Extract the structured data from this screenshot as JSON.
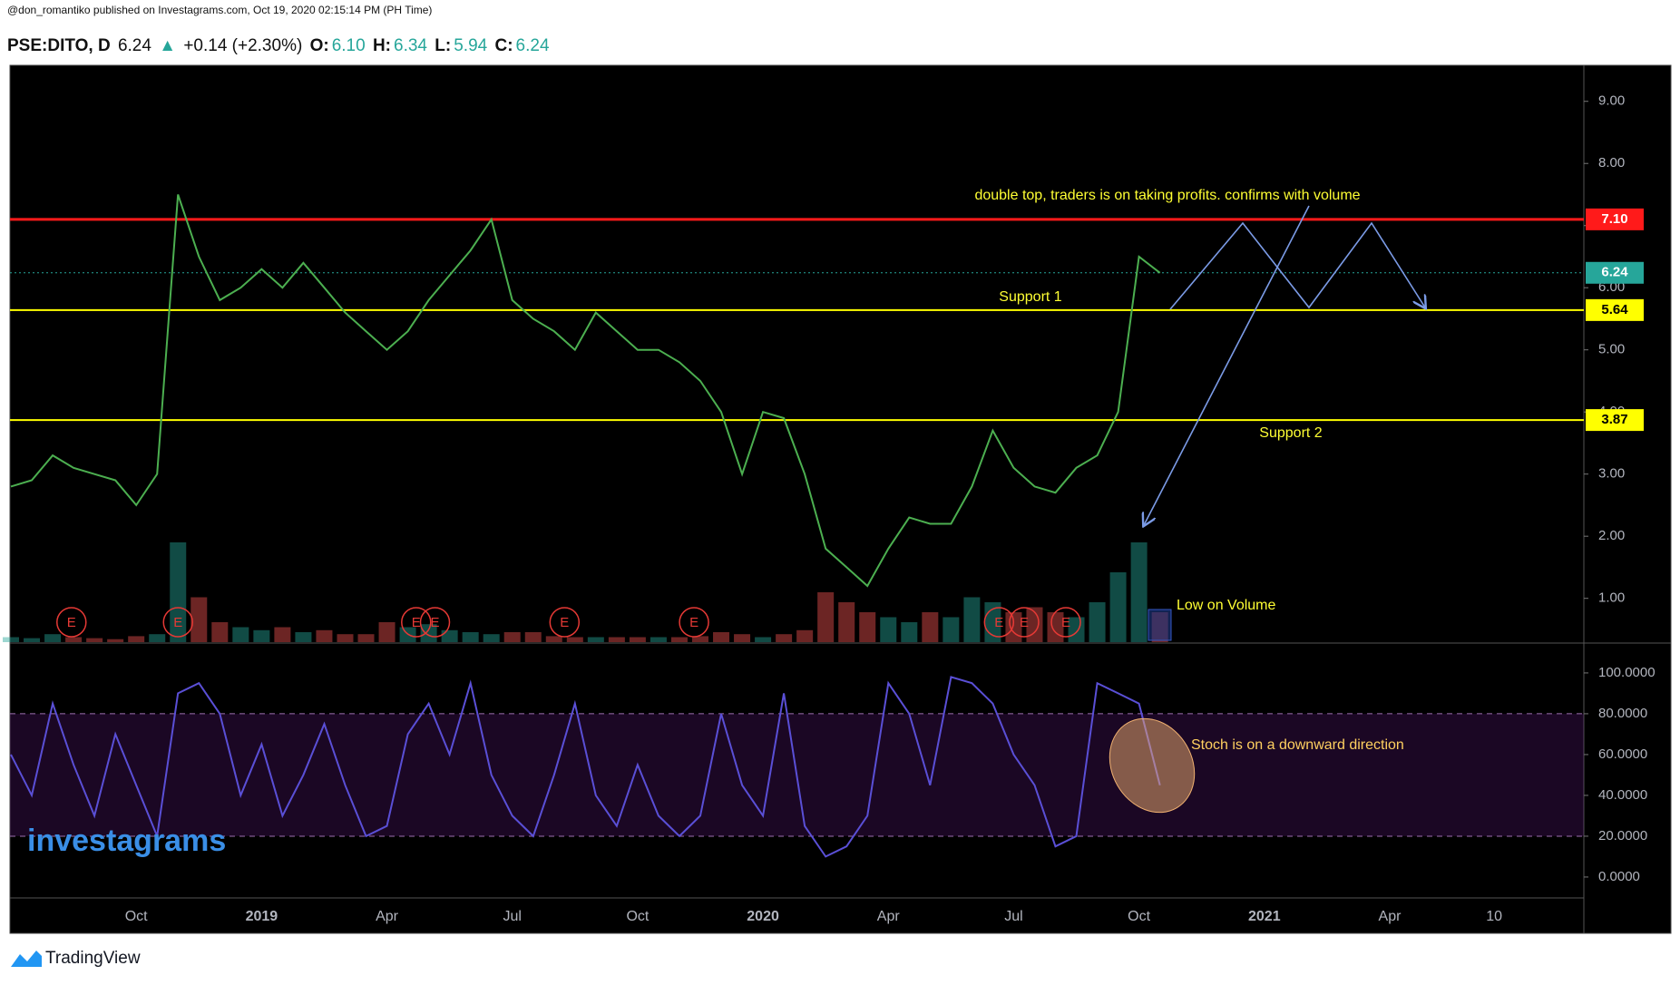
{
  "header": {
    "publisher": "@don_romantiko published on Investagrams.com, Oct 19, 2020 02:15:14 PM (PH Time)",
    "symbol": "PSE:DITO, D",
    "last": "6.24",
    "arrow": "▲",
    "change": "+0.14 (+2.30%)",
    "open_label": "O:",
    "open": "6.10",
    "high_label": "H:",
    "high": "6.34",
    "low_label": "L:",
    "low": "5.94",
    "close_label": "C:",
    "close": "6.24"
  },
  "chart_data": [
    {
      "type": "line",
      "ylim": [
        0.28,
        9.58
      ],
      "yticks": [
        {
          "value": 1,
          "label": "1.00"
        },
        {
          "value": 2,
          "label": "2.00"
        },
        {
          "value": 3,
          "label": "3.00"
        },
        {
          "value": 4,
          "label": "4.00"
        },
        {
          "value": 5,
          "label": "5.00"
        },
        {
          "value": 6,
          "label": "6.00"
        },
        {
          "value": 7,
          "label": "7.00"
        },
        {
          "value": 8,
          "label": "8.00"
        },
        {
          "value": 9,
          "label": "9.00"
        }
      ],
      "series": [
        {
          "name": "DITO",
          "color": "#4caf50",
          "values": [
            2.8,
            2.9,
            3.3,
            3.1,
            3.0,
            2.9,
            2.5,
            3.0,
            7.5,
            6.5,
            5.8,
            6.0,
            6.3,
            6.0,
            6.4,
            6.0,
            5.6,
            5.3,
            5.0,
            5.3,
            5.8,
            6.2,
            6.6,
            7.1,
            5.8,
            5.5,
            5.3,
            5.0,
            5.6,
            5.3,
            5.0,
            5.0,
            4.8,
            4.5,
            4.0,
            3.0,
            4.0,
            3.9,
            3.0,
            1.8,
            1.5,
            1.2,
            1.8,
            2.3,
            2.2,
            2.2,
            2.8,
            3.7,
            3.1,
            2.8,
            2.7,
            3.1,
            3.3,
            4.0,
            6.5,
            6.24,
            null,
            null,
            null,
            null,
            null,
            null,
            null,
            null,
            null,
            null,
            null,
            null,
            null,
            null,
            null,
            null
          ]
        }
      ],
      "volume": [
        5,
        4,
        8,
        5,
        4,
        3,
        6,
        8,
        100,
        45,
        20,
        15,
        12,
        15,
        10,
        12,
        8,
        8,
        20,
        15,
        18,
        12,
        10,
        8,
        10,
        10,
        6,
        5,
        5,
        5,
        5,
        5,
        5,
        6,
        10,
        8,
        5,
        8,
        12,
        50,
        40,
        30,
        25,
        20,
        30,
        25,
        45,
        40,
        30,
        35,
        30,
        25,
        40,
        70,
        100,
        30,
        null,
        null,
        null,
        null,
        null,
        null,
        null,
        null,
        null,
        null,
        null,
        null,
        null,
        null,
        null,
        null
      ],
      "levels": [
        {
          "value": 7.1,
          "label": "7.10",
          "color": "#ff1a1a",
          "text_color": "#ffffff",
          "style": "solid"
        },
        {
          "value": 6.24,
          "label": "6.24",
          "color": "#26a69a",
          "text_color": "#ffffff",
          "style": "dotted"
        },
        {
          "value": 5.64,
          "label": "5.64",
          "color": "#ffff00",
          "text_color": "#000000",
          "style": "solid"
        },
        {
          "value": 3.87,
          "label": "3.87",
          "color": "#ffff00",
          "text_color": "#000000",
          "style": "solid"
        }
      ],
      "events": [
        {
          "x": 2.9,
          "label": "E"
        },
        {
          "x": 8.0,
          "label": "E"
        },
        {
          "x": 19.4,
          "label": "E"
        },
        {
          "x": 20.3,
          "label": "E"
        },
        {
          "x": 26.5,
          "label": "E"
        },
        {
          "x": 32.7,
          "label": "E"
        },
        {
          "x": 47.3,
          "label": "E"
        },
        {
          "x": 48.5,
          "label": "E"
        },
        {
          "x": 50.5,
          "label": "E"
        }
      ],
      "annotations": [
        "double top, traders is on taking profits. confirms with volume",
        "Support 1",
        "Support 2",
        "Low on Volume"
      ]
    },
    {
      "type": "line",
      "ylim": [
        -9.8,
        113.3
      ],
      "yticks": [
        {
          "value": 0,
          "label": "0.0000"
        },
        {
          "value": 20,
          "label": "20.0000"
        },
        {
          "value": 40,
          "label": "40.0000"
        },
        {
          "value": 60,
          "label": "60.0000"
        },
        {
          "value": 80,
          "label": "80.0000"
        },
        {
          "value": 100,
          "label": "100.0000"
        }
      ],
      "band": [
        20,
        80
      ],
      "categories": [
        null,
        null,
        null,
        null,
        null,
        null,
        "Oct",
        null,
        null,
        null,
        null,
        null,
        "2019",
        null,
        null,
        null,
        null,
        null,
        "Apr",
        null,
        null,
        null,
        null,
        null,
        "Jul",
        null,
        null,
        null,
        null,
        null,
        "Oct",
        null,
        null,
        null,
        null,
        null,
        "2020",
        null,
        null,
        null,
        null,
        null,
        "Apr",
        null,
        null,
        null,
        null,
        null,
        "Jul",
        null,
        null,
        null,
        null,
        null,
        "Oct",
        null,
        null,
        null,
        null,
        null,
        "2021",
        null,
        null,
        null,
        null,
        null,
        "Apr",
        null,
        null,
        null,
        null,
        "10"
      ],
      "series": [
        {
          "name": "Stoch",
          "color": "#5a4fd6",
          "values": [
            60,
            40,
            85,
            55,
            30,
            70,
            45,
            20,
            90,
            95,
            80,
            40,
            65,
            30,
            50,
            75,
            45,
            20,
            25,
            70,
            85,
            60,
            95,
            50,
            30,
            20,
            50,
            85,
            40,
            25,
            55,
            30,
            20,
            30,
            80,
            45,
            30,
            90,
            25,
            10,
            15,
            30,
            95,
            80,
            45,
            98,
            95,
            85,
            60,
            45,
            15,
            20,
            95,
            90,
            85,
            45,
            null,
            null,
            null,
            null,
            null,
            null,
            null,
            null,
            null,
            null,
            null,
            null,
            null,
            null,
            null,
            null
          ]
        }
      ],
      "annotations": [
        "Stoch is on a downward direction"
      ]
    }
  ],
  "watermark": "investagrams",
  "footer": "TradingView"
}
